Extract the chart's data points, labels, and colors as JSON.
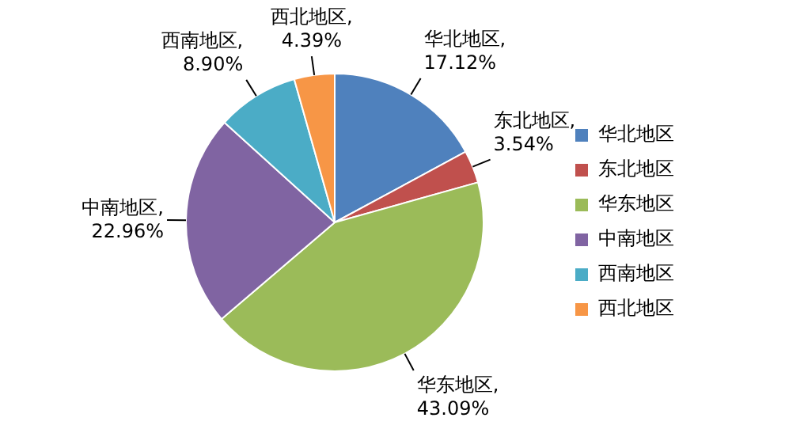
{
  "chart_data": {
    "type": "pie",
    "categories": [
      "华北地区",
      "东北地区",
      "华东地区",
      "中南地区",
      "西南地区",
      "西北地区"
    ],
    "values": [
      17.12,
      3.54,
      43.09,
      22.96,
      8.9,
      4.39
    ],
    "colors": [
      "#4f81bd",
      "#c0504d",
      "#9bbb59",
      "#8064a2",
      "#4bacc6",
      "#f79646"
    ],
    "value_labels": [
      "华北地区,\n17.12%",
      "东北地区,\n3.54%",
      "华东地区,\n43.09%",
      "中南地区,\n22.96%",
      "西南地区,\n8.90%",
      "西北地区,\n4.39%"
    ],
    "legend": "right"
  }
}
